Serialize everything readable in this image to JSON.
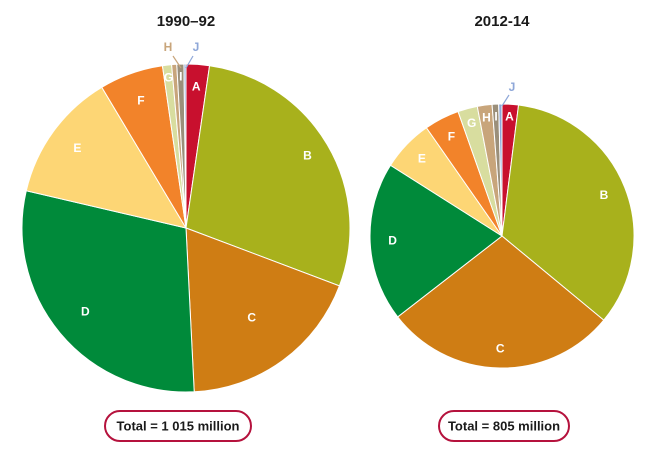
{
  "chart_data": [
    {
      "type": "pie",
      "title": "1990–92",
      "total_label": "Total = 1 015 million",
      "slices": [
        {
          "label": "A",
          "value": 2.3,
          "color": "#c8102e"
        },
        {
          "label": "B",
          "value": 28.5,
          "color": "#a8b11c"
        },
        {
          "label": "C",
          "value": 18.5,
          "color": "#cf7d14"
        },
        {
          "label": "D",
          "value": 29.5,
          "color": "#008a3a"
        },
        {
          "label": "E",
          "value": 12.8,
          "color": "#fdd675"
        },
        {
          "label": "F",
          "value": 6.3,
          "color": "#f2832a"
        },
        {
          "label": "G",
          "value": 0.9,
          "color": "#d8dd9f"
        },
        {
          "label": "H",
          "value": 0.5,
          "color": "#c8a57b"
        },
        {
          "label": "I",
          "value": 0.7,
          "color": "#9b8f7a"
        },
        {
          "label": "J",
          "value": 0.2,
          "color": "#8ea7d8"
        }
      ]
    },
    {
      "type": "pie",
      "title": "2012-14",
      "total_label": "Total = 805 million",
      "slices": [
        {
          "label": "A",
          "value": 2.0,
          "color": "#c8102e"
        },
        {
          "label": "B",
          "value": 34.0,
          "color": "#a8b11c"
        },
        {
          "label": "C",
          "value": 28.5,
          "color": "#cf7d14"
        },
        {
          "label": "D",
          "value": 19.5,
          "color": "#008a3a"
        },
        {
          "label": "E",
          "value": 6.3,
          "color": "#fdd675"
        },
        {
          "label": "F",
          "value": 4.3,
          "color": "#f2832a"
        },
        {
          "label": "G",
          "value": 2.4,
          "color": "#d8dd9f"
        },
        {
          "label": "H",
          "value": 1.8,
          "color": "#c8a57b"
        },
        {
          "label": "I",
          "value": 0.8,
          "color": "#9b8f7a"
        },
        {
          "label": "J",
          "value": 0.4,
          "color": "#8ea7d8"
        }
      ]
    }
  ],
  "badge_border_color": "#b5123d"
}
